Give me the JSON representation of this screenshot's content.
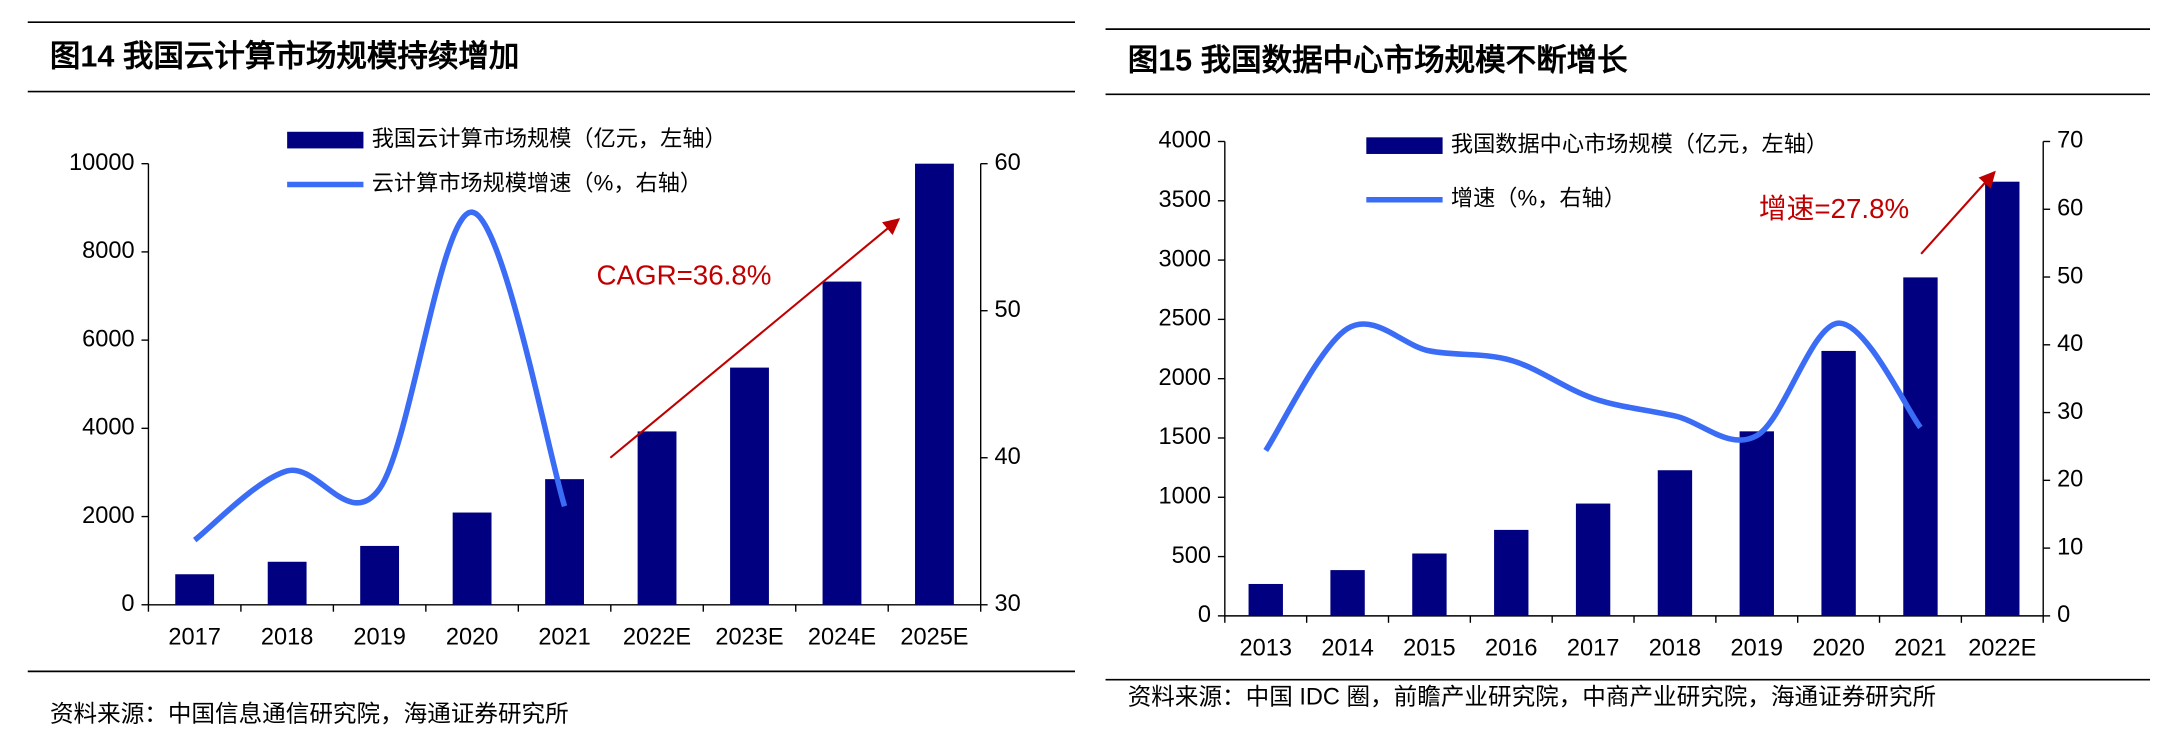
{
  "chart_data": [
    {
      "type": "bar",
      "title": "图14 我国云计算市场规模持续增加",
      "categories": [
        "2017",
        "2018",
        "2019",
        "2020",
        "2021",
        "2022E",
        "2023E",
        "2024E",
        "2025E"
      ],
      "series": [
        {
          "name": "我国云计算市场规模（亿元，左轴）",
          "color": "#000080",
          "type": "bar",
          "axis": "y",
          "values": [
            692,
            975,
            1334,
            2091,
            2848,
            3930,
            5377,
            7327,
            10000
          ]
        },
        {
          "name": "云计算市场规模增速（%，右轴）",
          "color": "#3b6cf6",
          "type": "line",
          "axis": "y2",
          "values": [
            34.4,
            39.1,
            37.9,
            56.7,
            36.7,
            null,
            null,
            null,
            null
          ]
        }
      ],
      "ylim": [
        0,
        10000
      ],
      "yticks": [
        0,
        2000,
        4000,
        6000,
        8000,
        10000
      ],
      "y2lim": [
        30,
        60
      ],
      "y2ticks": [
        30,
        40,
        50,
        60
      ],
      "annotation": "CAGR=36.8%",
      "source": "资料来源：中国信息通信研究院，海通证券研究所"
    },
    {
      "type": "bar",
      "title": "图15 我国数据中心市场规模不断增长",
      "categories": [
        "2013",
        "2014",
        "2015",
        "2016",
        "2017",
        "2018",
        "2019",
        "2020",
        "2021",
        "2022E"
      ],
      "series": [
        {
          "name": "我国数据中心市场规模（亿元，左轴）",
          "color": "#000080",
          "type": "bar",
          "axis": "y",
          "values": [
            269,
            386,
            526,
            725,
            947,
            1228,
            1556,
            2234,
            2854,
            3661
          ]
        },
        {
          "name": "增速（%，右轴）",
          "color": "#3b6cf6",
          "type": "line",
          "axis": "y2",
          "values": [
            24.4,
            42.4,
            39.1,
            37.7,
            32.1,
            29.5,
            26.6,
            43.2,
            27.8,
            null
          ]
        }
      ],
      "ylim": [
        0,
        4000
      ],
      "yticks": [
        0,
        500,
        1000,
        1500,
        2000,
        2500,
        3000,
        3500,
        4000
      ],
      "y2lim": [
        0,
        70
      ],
      "y2ticks": [
        0,
        10,
        20,
        30,
        40,
        50,
        60,
        70
      ],
      "annotation": "增速=27.8%",
      "source": "资料来源：中国 IDC 圈，前瞻产业研究院，中商产业研究院，海通证券研究所"
    }
  ]
}
